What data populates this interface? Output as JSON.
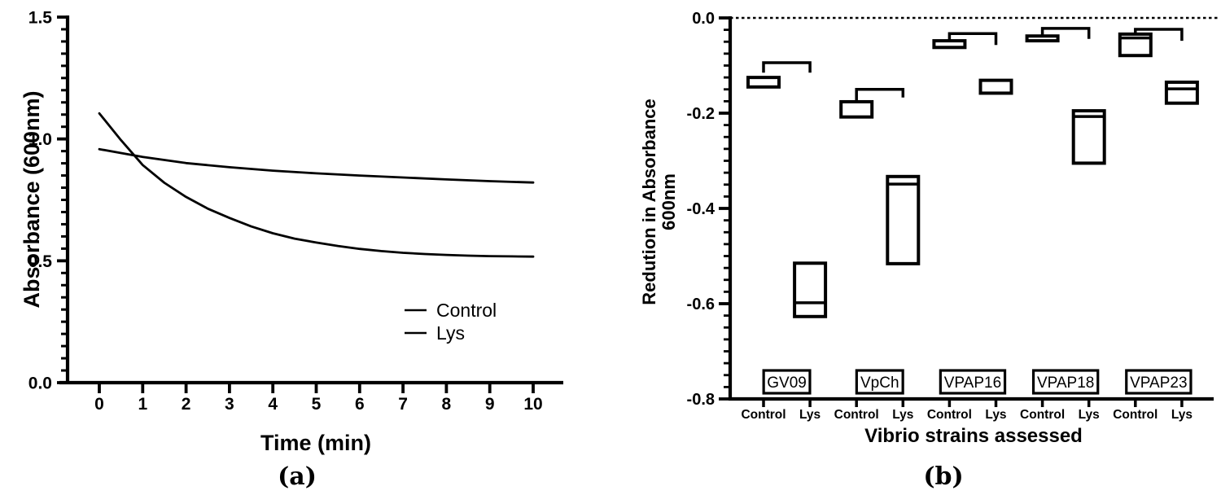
{
  "figure": {
    "background": "#ffffff",
    "ink": "#000000"
  },
  "chart_data": [
    {
      "panel": "a",
      "type": "line",
      "panel_label": "(a)",
      "xlabel": "Time (min)",
      "ylabel": "Absorbance (600nm)",
      "xlim": [
        0,
        10
      ],
      "ylim": [
        0,
        1.5
      ],
      "xticks": [
        0,
        1,
        2,
        3,
        4,
        5,
        6,
        7,
        8,
        9,
        10
      ],
      "xtick_labels": [
        "0",
        "1",
        "2",
        "3",
        "4",
        "5",
        "6",
        "7",
        "8",
        "9",
        "10"
      ],
      "yticks": [
        0,
        0.5,
        1.0,
        1.5
      ],
      "ytick_labels": [
        "0.0",
        "0.5",
        "1.0",
        "1.5"
      ],
      "y_minor_step": 0.05,
      "grid": false,
      "legend_position": "lower right",
      "series": [
        {
          "name": "Control",
          "x": [
            0,
            1,
            2,
            3,
            4,
            5,
            6,
            7,
            8,
            9,
            10
          ],
          "y": [
            0.958,
            0.926,
            0.901,
            0.884,
            0.87,
            0.859,
            0.85,
            0.842,
            0.834,
            0.827,
            0.821
          ]
        },
        {
          "name": "Lys",
          "x": [
            0,
            0.5,
            1,
            1.5,
            2,
            2.5,
            3,
            3.5,
            4,
            4.5,
            5,
            5.5,
            6,
            6.5,
            7,
            7.5,
            8,
            8.5,
            9,
            9.5,
            10
          ],
          "y": [
            1.105,
            0.995,
            0.893,
            0.82,
            0.762,
            0.714,
            0.676,
            0.641,
            0.613,
            0.591,
            0.575,
            0.561,
            0.549,
            0.54,
            0.533,
            0.528,
            0.524,
            0.521,
            0.519,
            0.518,
            0.517
          ]
        }
      ]
    },
    {
      "panel": "b",
      "type": "box",
      "panel_label": "(b)",
      "xlabel": "Vibrio strains assessed",
      "ylabel": "Redution in Absorbance 600nm",
      "ylabel_line1": "Redution in Absorbance",
      "ylabel_line2": "600nm",
      "ylim": [
        -0.8,
        0
      ],
      "yticks": [
        0,
        -0.2,
        -0.4,
        -0.6,
        -0.8
      ],
      "ytick_labels": [
        "0.0",
        "-0.2",
        "-0.4",
        "-0.6",
        "-0.8"
      ],
      "y_minor_step": 0.025,
      "zero_line": {
        "y": 0,
        "style": "dotted"
      },
      "conditions": [
        "Control",
        "Lys"
      ],
      "groups": [
        {
          "strain": "GV09",
          "control": {
            "upper": -0.125,
            "median": null,
            "lower": -0.145
          },
          "lys": {
            "upper": -0.515,
            "median": -0.598,
            "lower": -0.627
          },
          "bracket": {
            "y": -0.094,
            "left_drop_to": -0.115,
            "right_drop_to": -0.115
          }
        },
        {
          "strain": "VpCh",
          "control": {
            "upper": -0.176,
            "median": null,
            "lower": -0.208
          },
          "lys": {
            "upper": -0.333,
            "median": -0.349,
            "lower": -0.516
          },
          "bracket": {
            "y": -0.15,
            "left_drop_to": -0.174,
            "right_drop_to": -0.167
          }
        },
        {
          "strain": "VPAP16",
          "control": {
            "upper": -0.048,
            "median": null,
            "lower": -0.062
          },
          "lys": {
            "upper": -0.131,
            "median": null,
            "lower": -0.158
          },
          "bracket": {
            "y": -0.033,
            "left_drop_to": -0.048,
            "right_drop_to": -0.057
          }
        },
        {
          "strain": "VPAP18",
          "control": {
            "upper": -0.038,
            "median": null,
            "lower": -0.048
          },
          "lys": {
            "upper": -0.195,
            "median": -0.207,
            "lower": -0.305
          },
          "bracket": {
            "y": -0.022,
            "left_drop_to": -0.038,
            "right_drop_to": -0.044
          }
        },
        {
          "strain": "VPAP23",
          "control": {
            "upper": -0.034,
            "median": -0.042,
            "lower": -0.079
          },
          "lys": {
            "upper": -0.135,
            "median": -0.149,
            "lower": -0.179
          },
          "bracket": {
            "y": -0.024,
            "left_drop_to": -0.034,
            "right_drop_to": -0.048
          }
        }
      ]
    }
  ]
}
